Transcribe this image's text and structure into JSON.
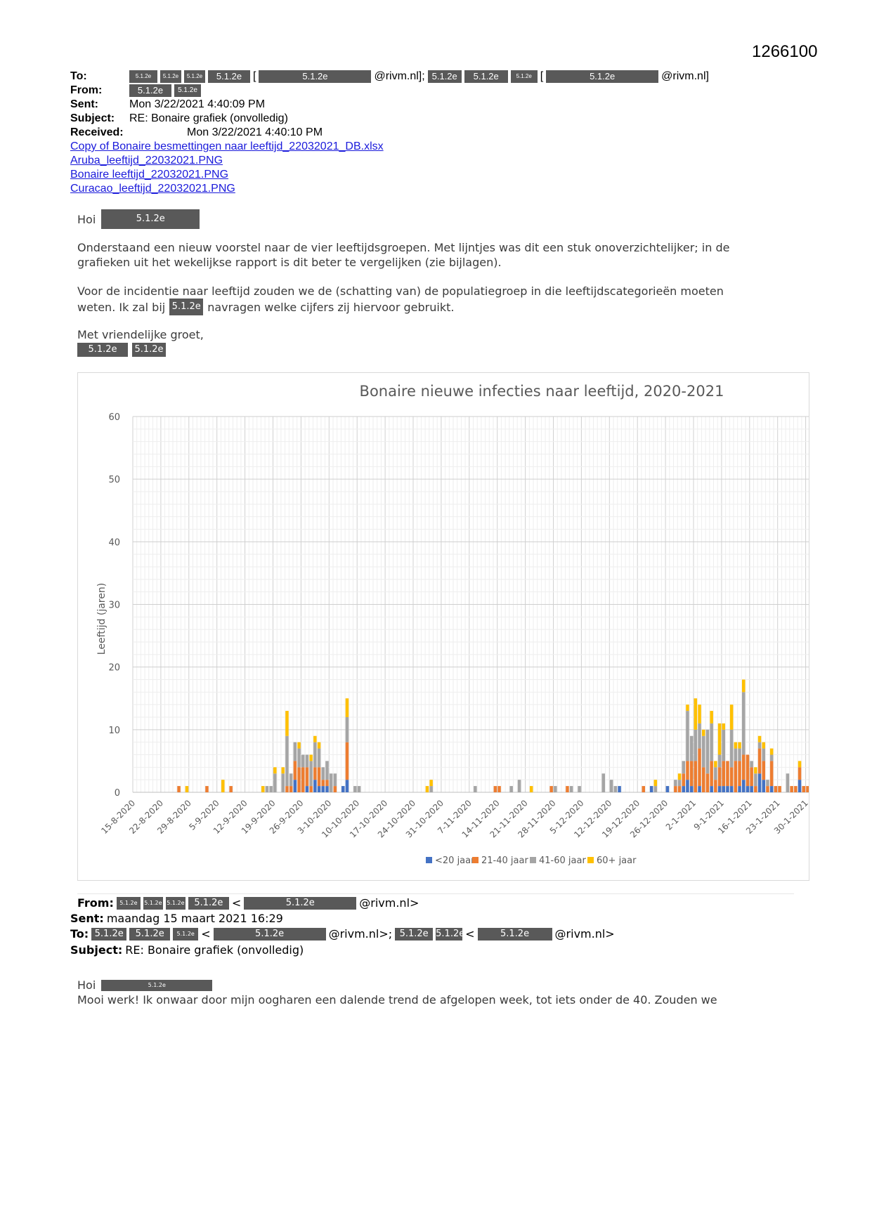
{
  "doc_number": "1266100",
  "header": {
    "to_label": "To:",
    "from_label": "From:",
    "sent_label": "Sent:",
    "sent_value": "Mon 3/22/2021 4:40:09 PM",
    "subject_label": "Subject:",
    "subject_value": "RE: Bonaire grafiek (onvolledig)",
    "received_label": "Received:",
    "received_value": "Mon 3/22/2021 4:40:10 PM",
    "redaction_code": "5.1.2e",
    "bracket_open": "[",
    "domain_end_1": "@rivm.nl];",
    "domain_end_2": "@rivm.nl]"
  },
  "attachments": [
    "Copy of Bonaire besmettingen naar leeftijd_22032021_DB.xlsx",
    "Aruba_leeftijd_22032021.PNG",
    "Bonaire leeftijd_22032021.PNG",
    "Curacao_leeftijd_22032021.PNG"
  ],
  "message": {
    "greeting": "Hoi",
    "p1_line1": "Onderstaand een nieuw voorstel naar de vier leeftijdsgroepen. Met lijntjes was dit een stuk onoverzichtelijker; in de",
    "p1_line2": "grafieken uit het wekelijkse rapport is dit beter te vergelijken (zie bijlagen).",
    "p2_line1": "Voor de incidentie naar leeftijd zouden we de (schatting van) de populatiegroep in die leeftijdscategorieën moeten",
    "p2_line2a": "weten. Ik zal bij",
    "p2_line2b": "navragen welke cijfers zij hiervoor gebruikt.",
    "closing": "Met vriendelijke groet,"
  },
  "previous": {
    "from_label": "From:",
    "lt": "<",
    "domain_a": "@rivm.nl>",
    "domain_b": "@rivm.nl>;",
    "sent_label": "Sent:",
    "sent_value": "maandag 15 maart 2021 16:29",
    "to_label": "To:",
    "subject_label": "Subject:",
    "subject_value": "RE: Bonaire grafiek (onvolledig)",
    "greeting": "Hoi",
    "line1": "Mooi werk! Ik onwaar door mijn oogharen een dalende trend de afgelopen week, tot iets onder de 40. Zouden we"
  },
  "chart_data": {
    "type": "bar",
    "stacked": true,
    "title": "Bonaire nieuwe infecties naar leeftijd, 2020-2021",
    "xlabel": "",
    "ylabel": "Leeftijd (jaren)",
    "ylim": [
      0,
      60
    ],
    "yticks": [
      0,
      10,
      20,
      30,
      40,
      50,
      60
    ],
    "grid": true,
    "legend_position": "bottom",
    "x_start": "15-8-2020",
    "x_tick_labels": [
      "15-8-2020",
      "22-8-2020",
      "29-8-2020",
      "5-9-2020",
      "12-9-2020",
      "19-9-2020",
      "26-9-2020",
      "3-10-2020",
      "10-10-2020",
      "17-10-2020",
      "24-10-2020",
      "31-10-2020",
      "7-11-2020",
      "14-11-2020",
      "21-11-2020",
      "28-11-2020",
      "5-12-2020",
      "12-12-2020",
      "19-12-2020",
      "26-12-2020",
      "2-1-2021",
      "9-1-2021",
      "16-1-2021",
      "23-1-2021",
      "30-1-2021"
    ],
    "series_names": [
      "<20 jaar",
      "21-40 jaar",
      "41-60 jaar",
      "60+ jaar"
    ],
    "colors": [
      "#4472C4",
      "#ED7D31",
      "#A5A5A5",
      "#FFC000"
    ],
    "bars": [
      {
        "date": "26-8-2020",
        "values": [
          0,
          1,
          0,
          0
        ]
      },
      {
        "date": "28-8-2020",
        "values": [
          0,
          0,
          0,
          1
        ]
      },
      {
        "date": "2-9-2020",
        "values": [
          0,
          1,
          0,
          0
        ]
      },
      {
        "date": "6-9-2020",
        "values": [
          0,
          0,
          0,
          2
        ]
      },
      {
        "date": "8-9-2020",
        "values": [
          0,
          1,
          0,
          0
        ]
      },
      {
        "date": "16-9-2020",
        "values": [
          0,
          0,
          0,
          1
        ]
      },
      {
        "date": "17-9-2020",
        "values": [
          0,
          0,
          1,
          0
        ]
      },
      {
        "date": "18-9-2020",
        "values": [
          0,
          0,
          1,
          0
        ]
      },
      {
        "date": "19-9-2020",
        "values": [
          0,
          0,
          3,
          1
        ]
      },
      {
        "date": "21-9-2020",
        "values": [
          0,
          0,
          3,
          1
        ]
      },
      {
        "date": "22-9-2020",
        "values": [
          0,
          1,
          8,
          4
        ]
      },
      {
        "date": "23-9-2020",
        "values": [
          0,
          1,
          2,
          0
        ]
      },
      {
        "date": "24-9-2020",
        "values": [
          2,
          3,
          3,
          0
        ]
      },
      {
        "date": "25-9-2020",
        "values": [
          0,
          4,
          3,
          1
        ]
      },
      {
        "date": "26-9-2020",
        "values": [
          0,
          4,
          2,
          0
        ]
      },
      {
        "date": "27-9-2020",
        "values": [
          1,
          3,
          2,
          0
        ]
      },
      {
        "date": "28-9-2020",
        "values": [
          0,
          1,
          4,
          1
        ]
      },
      {
        "date": "29-9-2020",
        "values": [
          2,
          2,
          4,
          1
        ]
      },
      {
        "date": "30-9-2020",
        "values": [
          1,
          3,
          3,
          1
        ]
      },
      {
        "date": "1-10-2020",
        "values": [
          1,
          1,
          2,
          0
        ]
      },
      {
        "date": "2-10-2020",
        "values": [
          1,
          1,
          3,
          0
        ]
      },
      {
        "date": "3-10-2020",
        "values": [
          0,
          0,
          3,
          0
        ]
      },
      {
        "date": "4-10-2020",
        "values": [
          0,
          1,
          2,
          0
        ]
      },
      {
        "date": "6-10-2020",
        "values": [
          1,
          0,
          0,
          0
        ]
      },
      {
        "date": "7-10-2020",
        "values": [
          2,
          6,
          4,
          3
        ]
      },
      {
        "date": "9-10-2020",
        "values": [
          0,
          0,
          1,
          0
        ]
      },
      {
        "date": "10-10-2020",
        "values": [
          0,
          0,
          1,
          0
        ]
      },
      {
        "date": "27-10-2020",
        "values": [
          0,
          0,
          0,
          1
        ]
      },
      {
        "date": "28-10-2020",
        "values": [
          0,
          0,
          1,
          1
        ]
      },
      {
        "date": "8-11-2020",
        "values": [
          0,
          0,
          1,
          0
        ]
      },
      {
        "date": "13-11-2020",
        "values": [
          0,
          1,
          0,
          0
        ]
      },
      {
        "date": "14-11-2020",
        "values": [
          0,
          1,
          0,
          0
        ]
      },
      {
        "date": "17-11-2020",
        "values": [
          0,
          0,
          1,
          0
        ]
      },
      {
        "date": "19-11-2020",
        "values": [
          0,
          0,
          2,
          0
        ]
      },
      {
        "date": "22-11-2020",
        "values": [
          0,
          0,
          0,
          1
        ]
      },
      {
        "date": "27-11-2020",
        "values": [
          0,
          1,
          0,
          0
        ]
      },
      {
        "date": "28-11-2020",
        "values": [
          0,
          0,
          1,
          0
        ]
      },
      {
        "date": "1-12-2020",
        "values": [
          0,
          1,
          0,
          0
        ]
      },
      {
        "date": "2-12-2020",
        "values": [
          0,
          0,
          1,
          0
        ]
      },
      {
        "date": "4-12-2020",
        "values": [
          0,
          0,
          1,
          0
        ]
      },
      {
        "date": "10-12-2020",
        "values": [
          0,
          0,
          3,
          0
        ]
      },
      {
        "date": "12-12-2020",
        "values": [
          0,
          0,
          2,
          0
        ]
      },
      {
        "date": "13-12-2020",
        "values": [
          0,
          0,
          1,
          0
        ]
      },
      {
        "date": "14-12-2020",
        "values": [
          1,
          0,
          0,
          0
        ]
      },
      {
        "date": "20-12-2020",
        "values": [
          0,
          1,
          0,
          0
        ]
      },
      {
        "date": "22-12-2020",
        "values": [
          1,
          0,
          0,
          0
        ]
      },
      {
        "date": "23-12-2020",
        "values": [
          0,
          0,
          1,
          1
        ]
      },
      {
        "date": "26-12-2020",
        "values": [
          1,
          0,
          0,
          0
        ]
      },
      {
        "date": "28-12-2020",
        "values": [
          0,
          1,
          1,
          0
        ]
      },
      {
        "date": "29-12-2020",
        "values": [
          0,
          1,
          1,
          1
        ]
      },
      {
        "date": "30-12-2020",
        "values": [
          1,
          2,
          2,
          0
        ]
      },
      {
        "date": "31-12-2020",
        "values": [
          2,
          3,
          8,
          1
        ]
      },
      {
        "date": "1-1-2021",
        "values": [
          1,
          4,
          4,
          0
        ]
      },
      {
        "date": "2-1-2021",
        "values": [
          0,
          5,
          5,
          5
        ]
      },
      {
        "date": "3-1-2021",
        "values": [
          1,
          6,
          4,
          3
        ]
      },
      {
        "date": "4-1-2021",
        "values": [
          0,
          4,
          5,
          1
        ]
      },
      {
        "date": "5-1-2021",
        "values": [
          0,
          3,
          7,
          0
        ]
      },
      {
        "date": "6-1-2021",
        "values": [
          1,
          4,
          6,
          2
        ]
      },
      {
        "date": "7-1-2021",
        "values": [
          0,
          2,
          2,
          1
        ]
      },
      {
        "date": "8-1-2021",
        "values": [
          1,
          3,
          2,
          5
        ]
      },
      {
        "date": "9-1-2021",
        "values": [
          1,
          4,
          5,
          1
        ]
      },
      {
        "date": "10-1-2021",
        "values": [
          1,
          4,
          0,
          0
        ]
      },
      {
        "date": "11-1-2021",
        "values": [
          1,
          3,
          6,
          4
        ]
      },
      {
        "date": "12-1-2021",
        "values": [
          0,
          5,
          2,
          1
        ]
      },
      {
        "date": "13-1-2021",
        "values": [
          1,
          4,
          2,
          1
        ]
      },
      {
        "date": "14-1-2021",
        "values": [
          2,
          4,
          10,
          2
        ]
      },
      {
        "date": "15-1-2021",
        "values": [
          1,
          5,
          0,
          0
        ]
      },
      {
        "date": "16-1-2021",
        "values": [
          1,
          3,
          1,
          0
        ]
      },
      {
        "date": "17-1-2021",
        "values": [
          0,
          1,
          2,
          1
        ]
      },
      {
        "date": "18-1-2021",
        "values": [
          3,
          4,
          1,
          1
        ]
      },
      {
        "date": "19-1-2021",
        "values": [
          2,
          3,
          2,
          1
        ]
      },
      {
        "date": "20-1-2021",
        "values": [
          0,
          1,
          1,
          0
        ]
      },
      {
        "date": "21-1-2021",
        "values": [
          1,
          4,
          1,
          1
        ]
      },
      {
        "date": "22-1-2021",
        "values": [
          0,
          1,
          0,
          0
        ]
      },
      {
        "date": "23-1-2021",
        "values": [
          0,
          1,
          0,
          0
        ]
      },
      {
        "date": "25-1-2021",
        "values": [
          0,
          0,
          3,
          0
        ]
      },
      {
        "date": "26-1-2021",
        "values": [
          0,
          1,
          0,
          0
        ]
      },
      {
        "date": "27-1-2021",
        "values": [
          0,
          1,
          0,
          0
        ]
      },
      {
        "date": "28-1-2021",
        "values": [
          2,
          2,
          0,
          1
        ]
      },
      {
        "date": "29-1-2021",
        "values": [
          0,
          1,
          0,
          0
        ]
      },
      {
        "date": "30-1-2021",
        "values": [
          0,
          1,
          0,
          0
        ]
      }
    ]
  }
}
